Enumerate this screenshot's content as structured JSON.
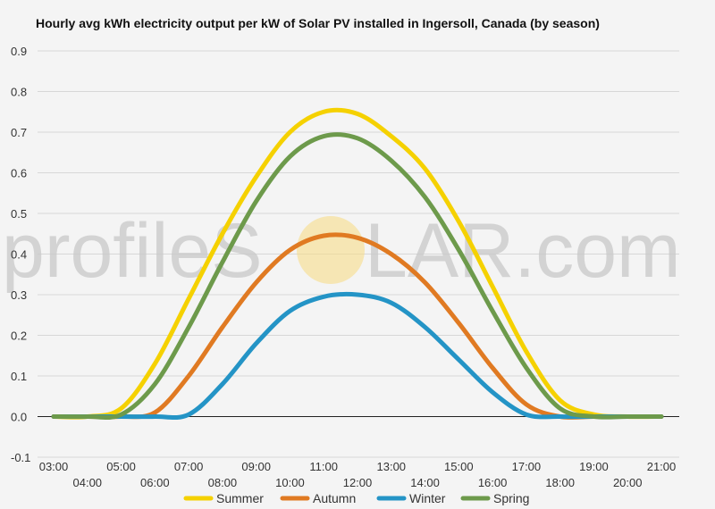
{
  "chart_data": {
    "type": "line",
    "title": "Hourly avg kWh electricity output per kW of Solar PV installed in Ingersoll, Canada (by season)",
    "xlabel": "",
    "ylabel": "",
    "ylim": [
      -0.1,
      0.9
    ],
    "yticks": [
      "0.9",
      "0.8",
      "0.7",
      "0.6",
      "0.5",
      "0.4",
      "0.3",
      "0.2",
      "0.1",
      "0.0",
      "-0.1"
    ],
    "ytick_values": [
      0.9,
      0.8,
      0.7,
      0.6,
      0.5,
      0.4,
      0.3,
      0.2,
      0.1,
      0.0,
      -0.1
    ],
    "x": [
      "03:00",
      "04:00",
      "05:00",
      "06:00",
      "07:00",
      "08:00",
      "09:00",
      "10:00",
      "11:00",
      "12:00",
      "13:00",
      "14:00",
      "15:00",
      "16:00",
      "17:00",
      "18:00",
      "19:00",
      "20:00",
      "21:00"
    ],
    "grid": true,
    "legend_position": "bottom",
    "series": [
      {
        "name": "Summer",
        "color": "#f5d100",
        "values": [
          0.0,
          0.0,
          0.02,
          0.13,
          0.29,
          0.45,
          0.59,
          0.7,
          0.75,
          0.745,
          0.69,
          0.61,
          0.48,
          0.32,
          0.16,
          0.04,
          0.005,
          0.0,
          0.0
        ]
      },
      {
        "name": "Autumn",
        "color": "#e07a22",
        "values": [
          0.0,
          0.0,
          0.0,
          0.01,
          0.1,
          0.22,
          0.33,
          0.41,
          0.445,
          0.44,
          0.4,
          0.33,
          0.23,
          0.12,
          0.03,
          0.0,
          0.0,
          0.0,
          0.0
        ]
      },
      {
        "name": "Winter",
        "color": "#2494c6",
        "values": [
          0.0,
          0.0,
          0.0,
          0.0,
          0.005,
          0.08,
          0.18,
          0.26,
          0.295,
          0.3,
          0.28,
          0.22,
          0.14,
          0.06,
          0.005,
          0.0,
          0.0,
          0.0,
          0.0
        ]
      },
      {
        "name": "Spring",
        "color": "#6d9a4b",
        "values": [
          0.0,
          0.0,
          0.005,
          0.08,
          0.22,
          0.38,
          0.53,
          0.64,
          0.69,
          0.685,
          0.63,
          0.54,
          0.41,
          0.26,
          0.12,
          0.02,
          0.0,
          0.0,
          0.0
        ]
      }
    ]
  },
  "watermark": {
    "left": "profileS",
    "right": "LAR.com",
    "sun_color": "#f7dc88"
  }
}
